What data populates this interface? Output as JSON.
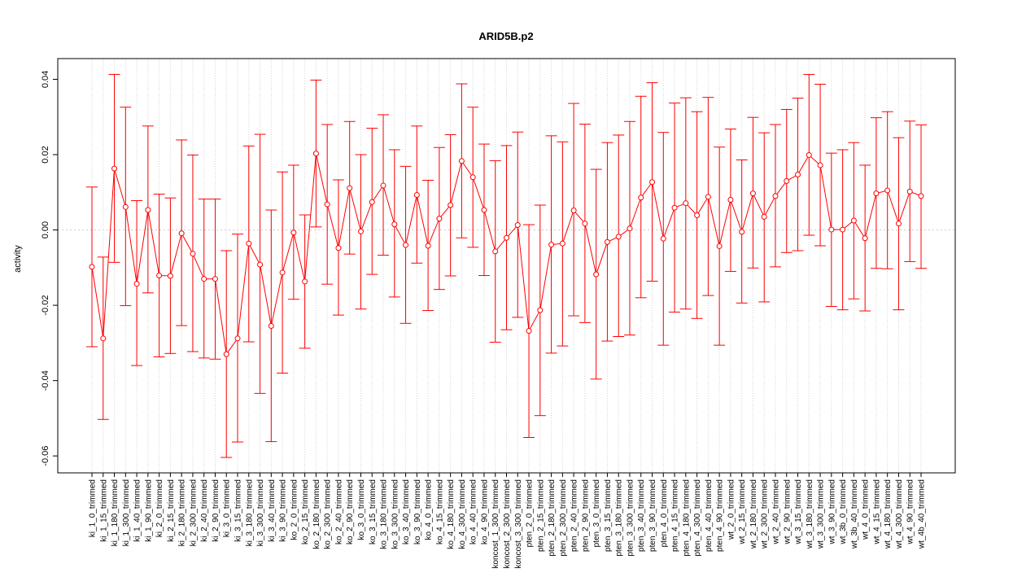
{
  "chart_data": {
    "type": "line",
    "title": "ARID5B.p2",
    "xlabel": "",
    "ylabel": "activity",
    "ylim": [
      -0.0645,
      0.0455
    ],
    "yticks": [
      -0.06,
      -0.04,
      -0.02,
      0.0,
      0.02,
      0.04
    ],
    "ytick_labels": [
      "-0.06",
      "-0.04",
      "-0.02",
      "0.00",
      "0.02",
      "0.04"
    ],
    "grid": true,
    "reference_line": 0,
    "color": "#ff0000",
    "categories": [
      "ki_1_0_trimmed",
      "ki_1_15_trimmed",
      "ki_1_180_trimmed",
      "ki_1_300_trimmed",
      "ki_1_40_trimmed",
      "ki_1_90_trimmed",
      "ki_2_0_trimmed",
      "ki_2_15_trimmed",
      "ki_2_180_trimmed",
      "ki_2_300_trimmed",
      "ki_2_40_trimmed",
      "ki_2_90_trimmed",
      "ki_3_0_trimmed",
      "ki_3_15_trimmed",
      "ki_3_180_trimmed",
      "ki_3_300_trimmed",
      "ki_3_40_trimmed",
      "ki_3_90_trimmed",
      "ko_2_0_trimmed",
      "ko_2_15_trimmed",
      "ko_2_180_trimmed",
      "ko_2_300_trimmed",
      "ko_2_40_trimmed",
      "ko_2_90_trimmed",
      "ko_3_0_trimmed",
      "ko_3_15_trimmed",
      "ko_3_180_trimmed",
      "ko_3_300_trimmed",
      "ko_3_40_trimmed",
      "ko_3_90_trimmed",
      "ko_4_0_trimmed",
      "ko_4_15_trimmed",
      "ko_4_180_trimmed",
      "ko_4_300_trimmed",
      "ko_4_40_trimmed",
      "ko_4_90_trimmed",
      "koncost_1_300_trimmed",
      "koncost_2_300_trimmed",
      "koncost_3_300_trimmed",
      "pten_2_0_trimmed",
      "pten_2_15_trimmed",
      "pten_2_180_trimmed",
      "pten_2_300_trimmed",
      "pten_2_40_trimmed",
      "pten_2_90_trimmed",
      "pten_3_0_trimmed",
      "pten_3_15_trimmed",
      "pten_3_180_trimmed",
      "pten_3_300_trimmed",
      "pten_3_40_trimmed",
      "pten_3_90_trimmed",
      "pten_4_0_trimmed",
      "pten_4_15_trimmed",
      "pten_4_180_trimmed",
      "pten_4_300_trimmed",
      "pten_4_40_trimmed",
      "pten_4_90_trimmed",
      "wt_2_0_trimmed",
      "wt_2_15_trimmed",
      "wt_2_180_trimmed",
      "wt_2_300_trimmed",
      "wt_2_40_trimmed",
      "wt_2_90_trimmed",
      "wt_3_15_trimmed",
      "wt_3_180_trimmed",
      "wt_3_300_trimmed",
      "wt_3_90_trimmed",
      "wt_3b_0_trimmed",
      "wt_3b_40_trimmed",
      "wt_4_0_trimmed",
      "wt_4_15_trimmed",
      "wt_4_180_trimmed",
      "wt_4_300_trimmed",
      "wt_4_90_trimmed",
      "wt_4b_40_trimmed"
    ],
    "values": [
      -0.0098,
      -0.0288,
      0.0163,
      0.0061,
      -0.0143,
      0.0053,
      -0.0121,
      -0.0122,
      -0.0009,
      -0.0063,
      -0.013,
      -0.013,
      -0.033,
      -0.0288,
      -0.0036,
      -0.0092,
      -0.0255,
      -0.0113,
      -0.0007,
      -0.0137,
      0.0203,
      0.0068,
      -0.0048,
      0.0111,
      -0.0004,
      0.0074,
      0.0118,
      0.0015,
      -0.004,
      0.0093,
      -0.0042,
      0.003,
      0.0066,
      0.0183,
      0.014,
      0.0053,
      -0.0057,
      -0.0021,
      0.0013,
      -0.0268,
      -0.0213,
      -0.0039,
      -0.0036,
      0.0052,
      0.0017,
      -0.0118,
      -0.0032,
      -0.0018,
      0.0004,
      0.0086,
      0.0127,
      -0.0023,
      0.0059,
      0.0071,
      0.0039,
      0.0088,
      -0.0043,
      0.008,
      -0.0005,
      0.0097,
      0.0035,
      0.009,
      0.013,
      0.0147,
      0.0199,
      0.0172,
      0.0001,
      0.0001,
      0.0025,
      -0.0022,
      0.0097,
      0.0105,
      0.0017,
      0.0102,
      0.009
    ],
    "upper": [
      0.0114,
      -0.0072,
      0.0413,
      0.0326,
      0.0078,
      0.0276,
      0.0095,
      0.0085,
      0.0239,
      0.0199,
      0.0082,
      0.0082,
      -0.0055,
      -0.0011,
      0.0223,
      0.0254,
      0.0053,
      0.0154,
      0.0172,
      0.004,
      0.0398,
      0.028,
      0.0133,
      0.0288,
      0.02,
      0.027,
      0.0306,
      0.0213,
      0.0169,
      0.0276,
      0.0132,
      0.0219,
      0.0253,
      0.0388,
      0.0326,
      0.0228,
      0.0184,
      0.0224,
      0.026,
      0.0014,
      0.0066,
      0.025,
      0.0234,
      0.0336,
      0.0281,
      0.0161,
      0.0232,
      0.0252,
      0.0288,
      0.0355,
      0.0391,
      0.0259,
      0.0337,
      0.0351,
      0.0314,
      0.0352,
      0.022,
      0.0268,
      0.0186,
      0.0299,
      0.0258,
      0.028,
      0.032,
      0.035,
      0.0413,
      0.0387,
      0.0204,
      0.0213,
      0.0232,
      0.0172,
      0.0298,
      0.0314,
      0.0245,
      0.0289,
      0.0279
    ],
    "lower": [
      -0.031,
      -0.0503,
      -0.0086,
      -0.0201,
      -0.036,
      -0.0167,
      -0.0337,
      -0.0328,
      -0.0254,
      -0.0323,
      -0.034,
      -0.0343,
      -0.0604,
      -0.0563,
      -0.0297,
      -0.0434,
      -0.0562,
      -0.038,
      -0.0184,
      -0.0314,
      0.0008,
      -0.0144,
      -0.0226,
      -0.0064,
      -0.021,
      -0.0118,
      -0.0067,
      -0.0178,
      -0.0248,
      -0.0088,
      -0.0214,
      -0.0158,
      -0.0122,
      -0.0021,
      -0.0046,
      -0.0121,
      -0.0298,
      -0.0265,
      -0.0232,
      -0.0551,
      -0.0493,
      -0.0327,
      -0.0308,
      -0.0228,
      -0.0246,
      -0.0396,
      -0.0295,
      -0.0283,
      -0.0279,
      -0.018,
      -0.0136,
      -0.0306,
      -0.0218,
      -0.021,
      -0.0235,
      -0.0174,
      -0.0306,
      -0.011,
      -0.0194,
      -0.0101,
      -0.0191,
      -0.0098,
      -0.006,
      -0.0055,
      -0.0014,
      -0.0042,
      -0.0203,
      -0.0212,
      -0.0183,
      -0.0215,
      -0.0102,
      -0.0103,
      -0.0212,
      -0.0084,
      -0.0102
    ]
  }
}
